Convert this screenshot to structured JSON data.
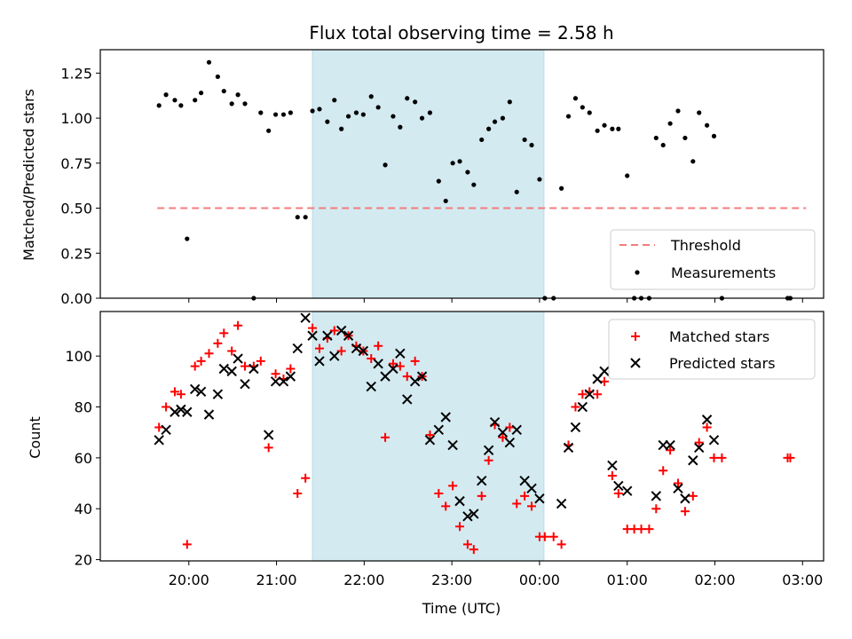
{
  "chart_data": [
    {
      "type": "scatter",
      "title": "Flux total observing time = 2.58 h",
      "ylabel": "Matched/Predicted stars",
      "xlabel": "",
      "x_unit": "hours since 19:00 UTC",
      "ylim": [
        0,
        1.38
      ],
      "yticks": [
        0.0,
        0.25,
        0.5,
        0.75,
        1.0,
        1.25
      ],
      "ytick_labels": [
        "0.00",
        "0.25",
        "0.50",
        "0.75",
        "1.00",
        "1.25"
      ],
      "shaded_x": [
        2.41,
        5.05
      ],
      "shade_color": "#d3eaf1",
      "threshold": {
        "name": "Threshold",
        "y": 0.5,
        "x": [
          0.64,
          8.04
        ],
        "color": "#f47c7c"
      },
      "series": [
        {
          "name": "Measurements",
          "color": "#000000",
          "marker": "dot",
          "points": [
            [
              0.66,
              1.07
            ],
            [
              0.74,
              1.13
            ],
            [
              0.84,
              1.1
            ],
            [
              0.91,
              1.07
            ],
            [
              0.98,
              0.33
            ],
            [
              1.07,
              1.1
            ],
            [
              1.14,
              1.14
            ],
            [
              1.23,
              1.31
            ],
            [
              1.33,
              1.23
            ],
            [
              1.4,
              1.15
            ],
            [
              1.49,
              1.08
            ],
            [
              1.56,
              1.13
            ],
            [
              1.64,
              1.08
            ],
            [
              1.74,
              0.0
            ],
            [
              1.82,
              1.03
            ],
            [
              1.91,
              0.93
            ],
            [
              1.99,
              1.02
            ],
            [
              2.08,
              1.02
            ],
            [
              2.16,
              1.03
            ],
            [
              2.24,
              0.45
            ],
            [
              2.33,
              0.45
            ],
            [
              2.41,
              1.04
            ],
            [
              2.49,
              1.05
            ],
            [
              2.58,
              0.98
            ],
            [
              2.66,
              1.1
            ],
            [
              2.74,
              0.94
            ],
            [
              2.82,
              1.01
            ],
            [
              2.91,
              1.03
            ],
            [
              2.99,
              1.02
            ],
            [
              3.08,
              1.12
            ],
            [
              3.16,
              1.06
            ],
            [
              3.24,
              0.74
            ],
            [
              3.33,
              1.01
            ],
            [
              3.41,
              0.95
            ],
            [
              3.49,
              1.11
            ],
            [
              3.58,
              1.09
            ],
            [
              3.66,
              1.0
            ],
            [
              3.75,
              1.03
            ],
            [
              3.85,
              0.65
            ],
            [
              3.93,
              0.54
            ],
            [
              4.01,
              0.75
            ],
            [
              4.09,
              0.76
            ],
            [
              4.18,
              0.7
            ],
            [
              4.25,
              0.63
            ],
            [
              4.34,
              0.88
            ],
            [
              4.42,
              0.94
            ],
            [
              4.49,
              0.98
            ],
            [
              4.58,
              1.0
            ],
            [
              4.66,
              1.09
            ],
            [
              4.74,
              0.59
            ],
            [
              4.83,
              0.88
            ],
            [
              4.91,
              0.85
            ],
            [
              5.0,
              0.66
            ],
            [
              5.06,
              0.0
            ],
            [
              5.16,
              0.0
            ],
            [
              5.25,
              0.61
            ],
            [
              5.33,
              1.01
            ],
            [
              5.41,
              1.11
            ],
            [
              5.49,
              1.06
            ],
            [
              5.57,
              1.03
            ],
            [
              5.66,
              0.93
            ],
            [
              5.74,
              0.96
            ],
            [
              5.83,
              0.94
            ],
            [
              5.9,
              0.94
            ],
            [
              6.0,
              0.68
            ],
            [
              6.08,
              0.0
            ],
            [
              6.16,
              0.0
            ],
            [
              6.25,
              0.0
            ],
            [
              6.33,
              0.89
            ],
            [
              6.41,
              0.85
            ],
            [
              6.49,
              0.97
            ],
            [
              6.58,
              1.04
            ],
            [
              6.66,
              0.89
            ],
            [
              6.75,
              0.76
            ],
            [
              6.82,
              1.03
            ],
            [
              6.91,
              0.96
            ],
            [
              6.99,
              0.9
            ],
            [
              7.08,
              0.0
            ],
            [
              7.83,
              0.0
            ],
            [
              7.86,
              0.0
            ]
          ]
        }
      ],
      "legend": {
        "position": "lower right",
        "entries": [
          "Threshold",
          "Measurements"
        ]
      }
    },
    {
      "type": "scatter",
      "title": "",
      "xlabel": "Time (UTC)",
      "ylabel": "Count",
      "x_unit": "hours since 19:00 UTC",
      "xlim": [
        -0.01,
        8.24
      ],
      "ylim": [
        19.5,
        117.5
      ],
      "xticks": [
        1,
        2,
        3,
        4,
        5,
        6,
        7,
        8
      ],
      "xtick_labels": [
        "20:00",
        "21:00",
        "22:00",
        "23:00",
        "00:00",
        "01:00",
        "02:00",
        "03:00"
      ],
      "yticks": [
        20,
        40,
        60,
        80,
        100
      ],
      "ytick_labels": [
        "20",
        "40",
        "60",
        "80",
        "100"
      ],
      "shaded_x": [
        2.41,
        5.05
      ],
      "series": [
        {
          "name": "Matched stars",
          "color": "#ff0000",
          "marker": "plus",
          "points": [
            [
              0.66,
              72
            ],
            [
              0.74,
              80
            ],
            [
              0.84,
              86
            ],
            [
              0.91,
              85
            ],
            [
              0.98,
              26
            ],
            [
              1.07,
              96
            ],
            [
              1.14,
              98
            ],
            [
              1.23,
              101
            ],
            [
              1.33,
              105
            ],
            [
              1.4,
              109
            ],
            [
              1.49,
              102
            ],
            [
              1.56,
              112
            ],
            [
              1.64,
              96
            ],
            [
              1.74,
              96
            ],
            [
              1.82,
              98
            ],
            [
              1.91,
              64
            ],
            [
              1.99,
              93
            ],
            [
              2.08,
              91
            ],
            [
              2.16,
              95
            ],
            [
              2.24,
              46
            ],
            [
              2.33,
              52
            ],
            [
              2.41,
              111
            ],
            [
              2.49,
              103
            ],
            [
              2.58,
              107
            ],
            [
              2.66,
              110
            ],
            [
              2.74,
              102
            ],
            [
              2.82,
              108
            ],
            [
              2.91,
              104
            ],
            [
              2.99,
              102
            ],
            [
              3.08,
              99
            ],
            [
              3.16,
              104
            ],
            [
              3.24,
              68
            ],
            [
              3.33,
              97
            ],
            [
              3.41,
              96
            ],
            [
              3.49,
              92
            ],
            [
              3.58,
              98
            ],
            [
              3.66,
              92
            ],
            [
              3.75,
              69
            ],
            [
              3.85,
              46
            ],
            [
              3.93,
              41
            ],
            [
              4.01,
              49
            ],
            [
              4.09,
              33
            ],
            [
              4.18,
              26
            ],
            [
              4.25,
              24
            ],
            [
              4.34,
              45
            ],
            [
              4.42,
              59
            ],
            [
              4.49,
              73
            ],
            [
              4.58,
              68
            ],
            [
              4.66,
              72
            ],
            [
              4.74,
              42
            ],
            [
              4.83,
              45
            ],
            [
              4.91,
              41
            ],
            [
              5.0,
              29
            ],
            [
              5.06,
              29
            ],
            [
              5.16,
              29
            ],
            [
              5.25,
              26
            ],
            [
              5.33,
              65
            ],
            [
              5.41,
              80
            ],
            [
              5.49,
              85
            ],
            [
              5.57,
              86
            ],
            [
              5.66,
              85
            ],
            [
              5.74,
              90
            ],
            [
              5.83,
              53
            ],
            [
              5.9,
              46
            ],
            [
              6.0,
              32
            ],
            [
              6.08,
              32
            ],
            [
              6.16,
              32
            ],
            [
              6.25,
              32
            ],
            [
              6.33,
              40
            ],
            [
              6.41,
              55
            ],
            [
              6.49,
              63
            ],
            [
              6.58,
              50
            ],
            [
              6.66,
              39
            ],
            [
              6.75,
              45
            ],
            [
              6.82,
              66
            ],
            [
              6.91,
              72
            ],
            [
              6.99,
              60
            ],
            [
              7.08,
              60
            ],
            [
              7.83,
              60
            ],
            [
              7.86,
              60
            ]
          ]
        },
        {
          "name": "Predicted stars",
          "color": "#000000",
          "marker": "x",
          "points": [
            [
              0.66,
              67
            ],
            [
              0.74,
              71
            ],
            [
              0.84,
              78
            ],
            [
              0.91,
              79
            ],
            [
              0.98,
              78
            ],
            [
              1.07,
              87
            ],
            [
              1.14,
              86
            ],
            [
              1.23,
              77
            ],
            [
              1.33,
              85
            ],
            [
              1.4,
              95
            ],
            [
              1.49,
              94
            ],
            [
              1.56,
              99
            ],
            [
              1.64,
              89
            ],
            [
              1.74,
              95
            ],
            [
              1.91,
              69
            ],
            [
              1.99,
              90
            ],
            [
              2.08,
              90
            ],
            [
              2.16,
              92
            ],
            [
              2.24,
              103
            ],
            [
              2.33,
              115
            ],
            [
              2.41,
              108
            ],
            [
              2.49,
              98
            ],
            [
              2.58,
              108
            ],
            [
              2.66,
              100
            ],
            [
              2.74,
              110
            ],
            [
              2.82,
              108
            ],
            [
              2.91,
              103
            ],
            [
              2.99,
              102
            ],
            [
              3.08,
              88
            ],
            [
              3.16,
              97
            ],
            [
              3.24,
              92
            ],
            [
              3.33,
              95
            ],
            [
              3.41,
              101
            ],
            [
              3.49,
              83
            ],
            [
              3.58,
              90
            ],
            [
              3.66,
              92
            ],
            [
              3.75,
              67
            ],
            [
              3.85,
              71
            ],
            [
              3.93,
              76
            ],
            [
              4.01,
              65
            ],
            [
              4.09,
              43
            ],
            [
              4.18,
              37
            ],
            [
              4.25,
              38
            ],
            [
              4.34,
              51
            ],
            [
              4.42,
              63
            ],
            [
              4.49,
              74
            ],
            [
              4.58,
              70
            ],
            [
              4.66,
              66
            ],
            [
              4.74,
              71
            ],
            [
              4.83,
              51
            ],
            [
              4.91,
              48
            ],
            [
              5.0,
              44
            ],
            [
              5.25,
              42
            ],
            [
              5.33,
              64
            ],
            [
              5.41,
              72
            ],
            [
              5.49,
              80
            ],
            [
              5.57,
              85
            ],
            [
              5.66,
              91
            ],
            [
              5.74,
              94
            ],
            [
              5.83,
              57
            ],
            [
              5.9,
              49
            ],
            [
              6.0,
              47
            ],
            [
              6.33,
              45
            ],
            [
              6.41,
              65
            ],
            [
              6.49,
              65
            ],
            [
              6.58,
              48
            ],
            [
              6.66,
              44
            ],
            [
              6.75,
              59
            ],
            [
              6.82,
              64
            ],
            [
              6.91,
              75
            ],
            [
              6.99,
              67
            ]
          ]
        }
      ],
      "legend": {
        "position": "upper right",
        "entries": [
          "Matched stars",
          "Predicted stars"
        ]
      }
    }
  ]
}
